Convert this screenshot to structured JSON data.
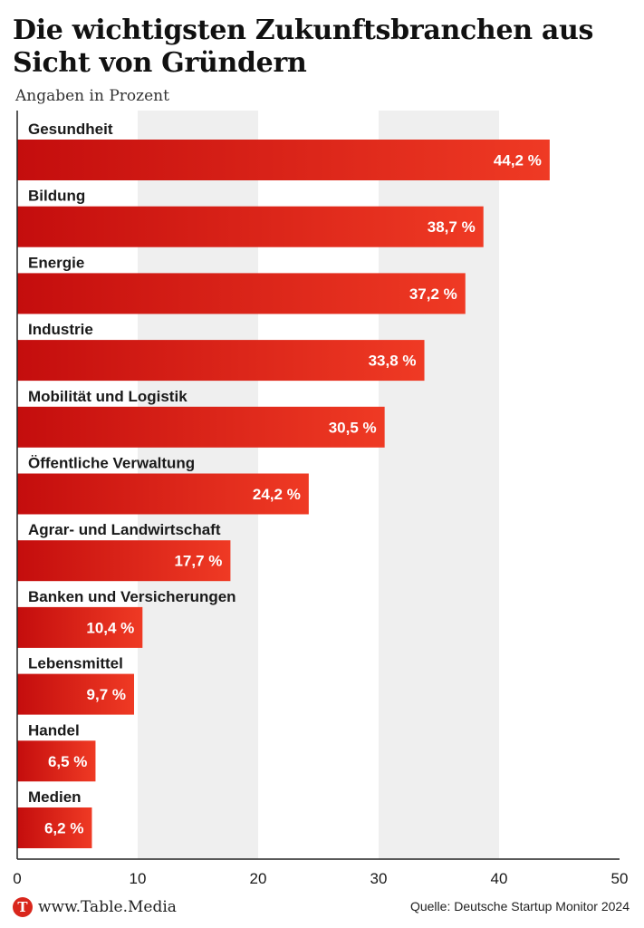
{
  "title": "Die wichtigsten Zukunftsbranchen aus Sicht von Gründern",
  "subtitle": "Angaben in Prozent",
  "footer": {
    "logo_letter": "T",
    "logo_text": "www.Table.Media",
    "source": "Quelle: Deutsche Startup Monitor 2024"
  },
  "colors": {
    "bar_start": "#c40d0d",
    "bar_end": "#ef3a24",
    "band": "#efefef",
    "logo": "#d9261c"
  },
  "chart_data": {
    "type": "bar",
    "orientation": "horizontal",
    "categories": [
      "Gesundheit",
      "Bildung",
      "Energie",
      "Industrie",
      "Mobilität und Logistik",
      "Öffentliche Verwaltung",
      "Agrar- und Landwirtschaft",
      "Banken und Versicherungen",
      "Lebensmittel",
      "Handel",
      "Medien"
    ],
    "values": [
      44.2,
      38.7,
      37.2,
      33.8,
      30.5,
      24.2,
      17.7,
      10.4,
      9.7,
      6.5,
      6.2
    ],
    "value_labels": [
      "44,2 %",
      "38,7 %",
      "37,2 %",
      "33,8 %",
      "30,5 %",
      "24,2 %",
      "17,7 %",
      "10,4 %",
      "9,7 %",
      "6,5 %",
      "6,2 %"
    ],
    "xlim": [
      0,
      50
    ],
    "xticks": [
      0,
      10,
      20,
      30,
      40,
      50
    ],
    "xlabel": "",
    "ylabel": "",
    "grid": "alternating vertical bands"
  }
}
